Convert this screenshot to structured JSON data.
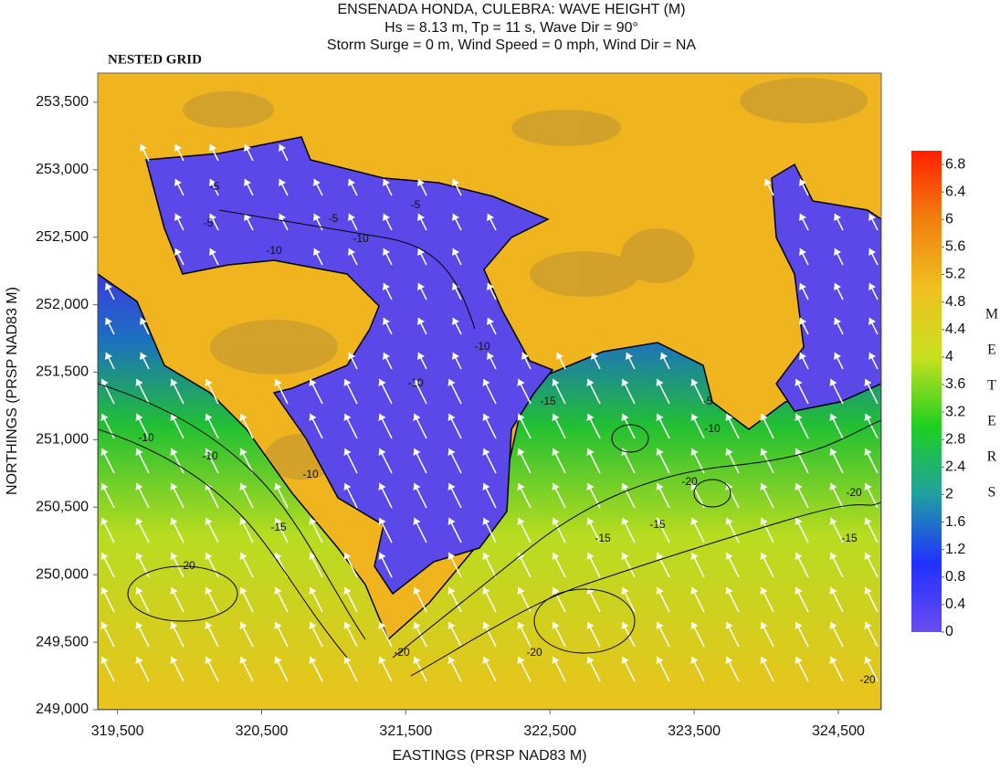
{
  "chart_data": {
    "type": "contour",
    "title": "ENSENADA HONDA, CULEBRA: WAVE HEIGHT (M)",
    "subtitle": "Hs = 8.13 m, Tp = 11 s, Wave Dir = 90°",
    "subtitle2": "Storm Surge = 0 m, Wind Speed = 0 mph, Wind Dir = NA",
    "annotation": "NESTED GRID",
    "xlabel": "EASTINGS (PRSP NAD83 M)",
    "ylabel": "NORTHINGS (PRSP NAD83 M)",
    "xlim": [
      319363,
      324798
    ],
    "ylim": [
      249000,
      253716
    ],
    "xticks": [
      {
        "value": 319500,
        "label": "319,500"
      },
      {
        "value": 320500,
        "label": "320,500"
      },
      {
        "value": 321500,
        "label": "321,500"
      },
      {
        "value": 322500,
        "label": "322,500"
      },
      {
        "value": 323500,
        "label": "323,500"
      },
      {
        "value": 324500,
        "label": "324,500"
      }
    ],
    "yticks": [
      {
        "value": 249000,
        "label": "249,000"
      },
      {
        "value": 249500,
        "label": "249,500"
      },
      {
        "value": 250000,
        "label": "250,000"
      },
      {
        "value": 250500,
        "label": "250,500"
      },
      {
        "value": 251000,
        "label": "251,000"
      },
      {
        "value": 251500,
        "label": "251,500"
      },
      {
        "value": 252000,
        "label": "252,000"
      },
      {
        "value": 252500,
        "label": "252,500"
      },
      {
        "value": 253000,
        "label": "253,000"
      },
      {
        "value": 253500,
        "label": "253,500"
      }
    ],
    "colorbar": {
      "label": [
        "M",
        "E",
        "T",
        "E",
        "R",
        "S"
      ],
      "lim": [
        0,
        7
      ],
      "ticks": [
        0,
        0.4,
        0.8,
        1.2,
        1.6,
        2,
        2.4,
        2.8,
        3.2,
        3.6,
        4,
        4.4,
        4.8,
        5.2,
        5.6,
        6,
        6.4,
        6.8
      ],
      "colors": [
        "#6a4cf0",
        "#2030ff",
        "#20a0a0",
        "#20d020",
        "#c8e020",
        "#f0c020",
        "#f08010",
        "#ff2000"
      ]
    },
    "contour_labels": [
      "-5",
      "-5",
      "-10",
      "-5",
      "-10",
      "-10",
      "-10",
      "-5",
      "-10",
      "-15",
      "-10",
      "-10",
      "-15",
      "-20",
      "-20",
      "-15",
      "-20",
      "-15",
      "-20",
      "-20",
      "-15",
      "-20",
      "-10",
      "-5"
    ]
  }
}
